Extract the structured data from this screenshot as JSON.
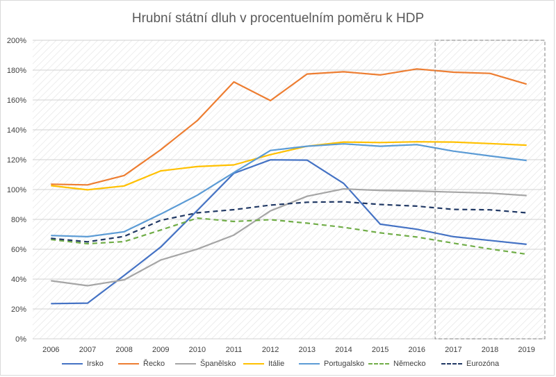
{
  "chart_data": {
    "type": "line",
    "title": "Hrubní státní dluh v procentuelním  poměru k HDP",
    "x": [
      "2006",
      "2007",
      "2008",
      "2009",
      "2010",
      "2011",
      "2012",
      "2013",
      "2014",
      "2015",
      "2016",
      "2017",
      "2018",
      "2019"
    ],
    "ylim": [
      0,
      200
    ],
    "yticks": [
      "0%",
      "20%",
      "40%",
      "60%",
      "80%",
      "100%",
      "120%",
      "140%",
      "160%",
      "180%",
      "200%"
    ],
    "grid": true,
    "legend_position": "bottom",
    "highlight_region": [
      "2017",
      "2019"
    ],
    "series": [
      {
        "name": "Irsko",
        "color": "#4472c4",
        "dash": false,
        "values": [
          23.6,
          23.9,
          42.4,
          61.5,
          86.0,
          110.9,
          119.9,
          119.7,
          104.1,
          76.8,
          73.4,
          68.4,
          65.9,
          63.3
        ]
      },
      {
        "name": "Řecko",
        "color": "#ed7d31",
        "dash": false,
        "values": [
          103.6,
          103.1,
          109.4,
          126.7,
          146.2,
          172.1,
          159.6,
          177.4,
          178.9,
          176.8,
          180.8,
          178.6,
          177.8,
          170.6
        ]
      },
      {
        "name": "Španělsko",
        "color": "#a5a5a5",
        "dash": false,
        "values": [
          38.9,
          35.6,
          39.5,
          52.8,
          60.1,
          69.5,
          85.7,
          95.5,
          100.4,
          99.4,
          99.0,
          98.3,
          97.6,
          96.0
        ]
      },
      {
        "name": "Itálie",
        "color": "#ffc000",
        "dash": false,
        "values": [
          102.6,
          99.8,
          102.4,
          112.5,
          115.4,
          116.5,
          123.4,
          129.0,
          131.8,
          131.5,
          132.0,
          131.8,
          130.8,
          129.7
        ]
      },
      {
        "name": "Portugalsko",
        "color": "#5b9bd5",
        "dash": false,
        "values": [
          69.2,
          68.4,
          71.7,
          83.6,
          96.2,
          111.4,
          126.2,
          129.0,
          130.6,
          129.0,
          130.1,
          125.7,
          122.5,
          119.5
        ]
      },
      {
        "name": "Německo",
        "color": "#70ad47",
        "dash": true,
        "values": [
          66.5,
          63.7,
          65.1,
          72.9,
          80.9,
          78.6,
          79.8,
          77.5,
          74.7,
          71.0,
          68.2,
          64.1,
          60.2,
          56.7
        ]
      },
      {
        "name": "Eurozóna",
        "color": "#203864",
        "dash": true,
        "values": [
          67.3,
          65.0,
          68.6,
          79.4,
          84.4,
          86.5,
          89.6,
          91.5,
          91.8,
          90.0,
          88.9,
          86.7,
          86.4,
          84.4
        ]
      }
    ]
  }
}
